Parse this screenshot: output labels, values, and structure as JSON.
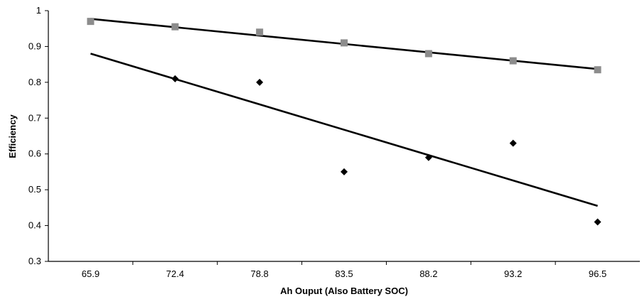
{
  "chart_data": {
    "type": "scatter",
    "title": "",
    "xlabel": "Ah Ouput (Also Battery SOC)",
    "ylabel": "Efficiency",
    "categories": [
      "65.9",
      "72.4",
      "78.8",
      "83.5",
      "88.2",
      "93.2",
      "96.5"
    ],
    "ylim": [
      0.3,
      1
    ],
    "yticks": [
      "0.3",
      "0.4",
      "0.5",
      "0.6",
      "0.7",
      "0.8",
      "0.9",
      "1"
    ],
    "grid": false,
    "legend": "none",
    "series": [
      {
        "marker": "square",
        "color": "#8c8c8c",
        "values": [
          0.97,
          0.955,
          0.94,
          0.91,
          0.88,
          0.86,
          0.835
        ],
        "trendline": [
          0.977,
          0.837
        ]
      },
      {
        "marker": "diamond",
        "color": "#000000",
        "values": [
          null,
          0.81,
          0.8,
          0.55,
          0.59,
          0.63,
          0.41
        ],
        "trendline": [
          0.88,
          0.455
        ]
      }
    ]
  }
}
